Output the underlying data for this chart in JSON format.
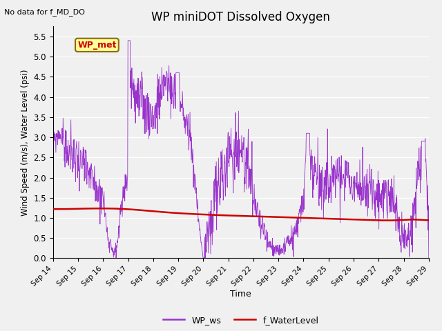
{
  "title": "WP miniDOT Dissolved Oxygen",
  "annotation": "No data for f_MD_DO",
  "xlabel": "Time",
  "ylabel": "Wind Speed (m/s), Water Level (psi)",
  "ylim": [
    0.0,
    5.75
  ],
  "yticks": [
    0.0,
    0.5,
    1.0,
    1.5,
    2.0,
    2.5,
    3.0,
    3.5,
    4.0,
    4.5,
    5.0,
    5.5
  ],
  "bg_color": "#f0f0f0",
  "plot_bg_color": "#f0f0f0",
  "wp_ws_color": "#9933cc",
  "f_wl_color": "#cc0000",
  "legend_label_ws": "WP_ws",
  "legend_label_wl": "f_WaterLevel",
  "legend_box_label": "WP_met",
  "legend_box_facecolor": "#ffff99",
  "legend_box_edgecolor": "#8B6914",
  "n_points": 1200
}
